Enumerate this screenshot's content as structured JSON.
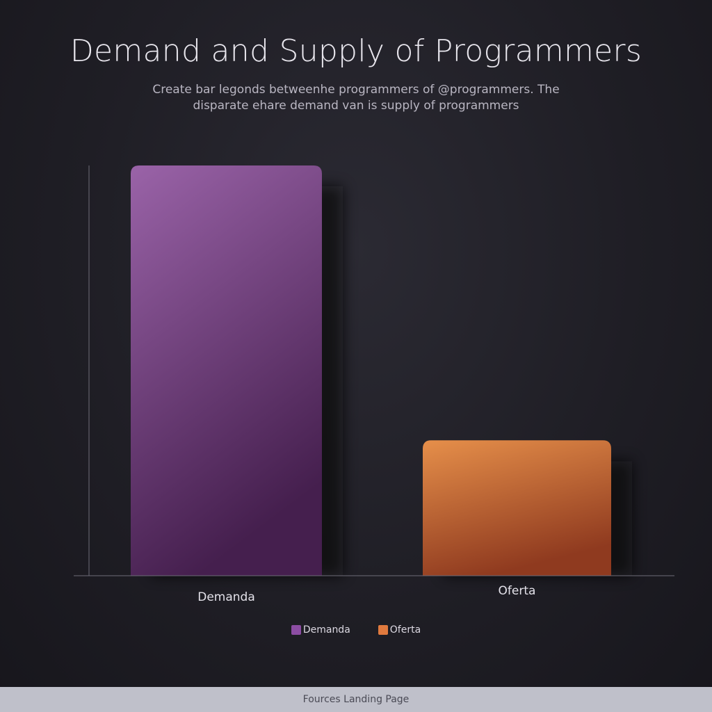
{
  "title": "Demand and Supply of Programmers",
  "subtitle": "Create bar legonds betweenhe programmers of @programmers. The disparate ehare demand van is supply of programmers",
  "footer": "Fources Landing Page",
  "colors": {
    "demand_top": "#9a63a8",
    "demand_bottom": "#451f4e",
    "supply_top": "#e68f4a",
    "supply_bottom": "#8f3a1f",
    "demand_swatch": "#8c4da3",
    "supply_swatch": "#e07a3e"
  },
  "chart_data": {
    "type": "bar",
    "categories": [
      "Demanda",
      "Oferta"
    ],
    "values": [
      100,
      33
    ],
    "title": "Demand and Supply of Programmers",
    "xlabel": "",
    "ylabel": "",
    "ylim": [
      0,
      100
    ],
    "legend": [
      "Demanda",
      "Oferta"
    ],
    "legend_position": "bottom",
    "grid": false
  }
}
